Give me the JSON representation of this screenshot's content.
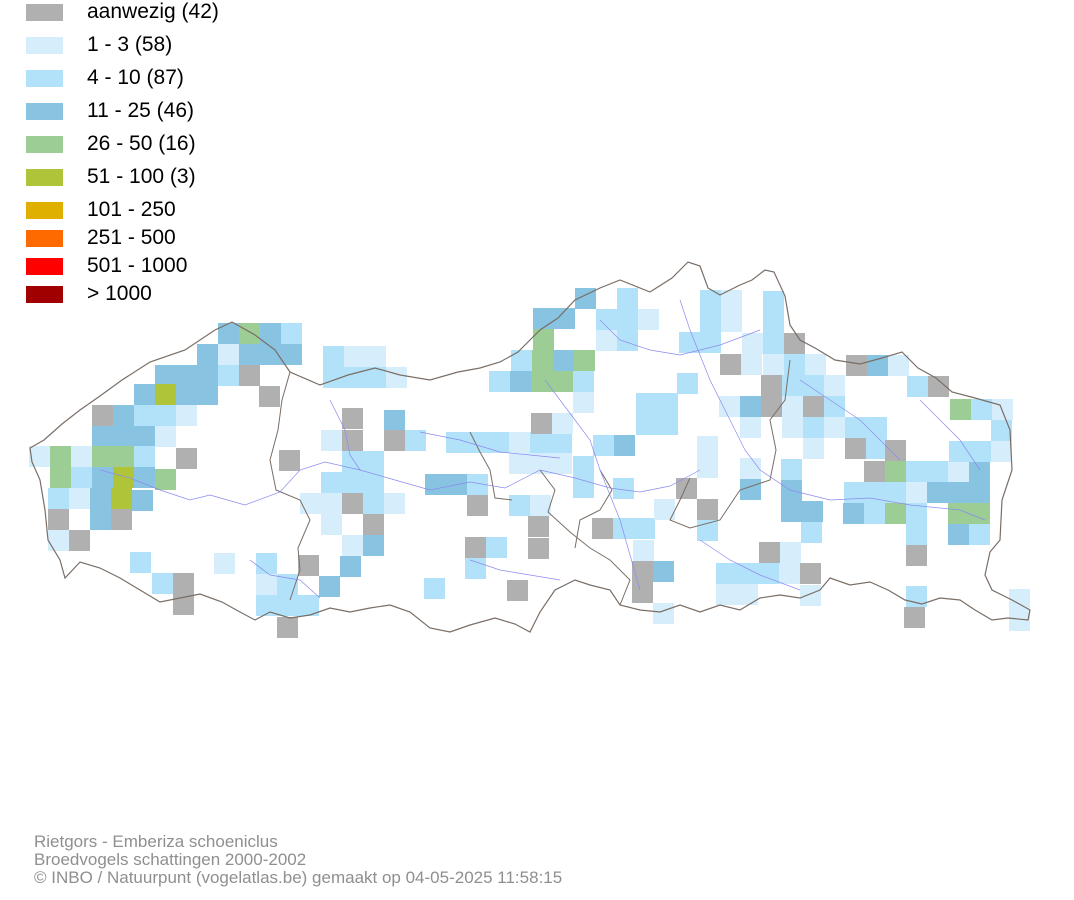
{
  "legend": {
    "items": [
      {
        "label": "aanwezig (42)",
        "color": "#b0b0b0"
      },
      {
        "label": "1 - 3 (58)",
        "color": "#d6eefb"
      },
      {
        "label": "4 - 10 (87)",
        "color": "#b2e2f9"
      },
      {
        "label": "11 - 25 (46)",
        "color": "#88c3e2"
      },
      {
        "label": "26 - 50 (16)",
        "color": "#9ccd94"
      },
      {
        "label": "51 - 100 (3)",
        "color": "#b0c43a"
      },
      {
        "label": "101 - 250",
        "color": "#e0b000"
      },
      {
        "label": "251 - 500",
        "color": "#ff6a00"
      },
      {
        "label": "501 - 1000",
        "color": "#ff0000"
      },
      {
        "label": "> 1000",
        "color": "#a00000"
      }
    ]
  },
  "footer": {
    "line1": "Rietgors - Emberiza schoeniclus",
    "line2": "Broedvogels schattingen 2000-2002",
    "line3": "© INBO / Natuurpunt (vogelatlas.be) gemaakt op 04-05-2025 11:58:15"
  },
  "map": {
    "border_color": "#7a6e66",
    "river_color": "#8a8af0"
  }
}
